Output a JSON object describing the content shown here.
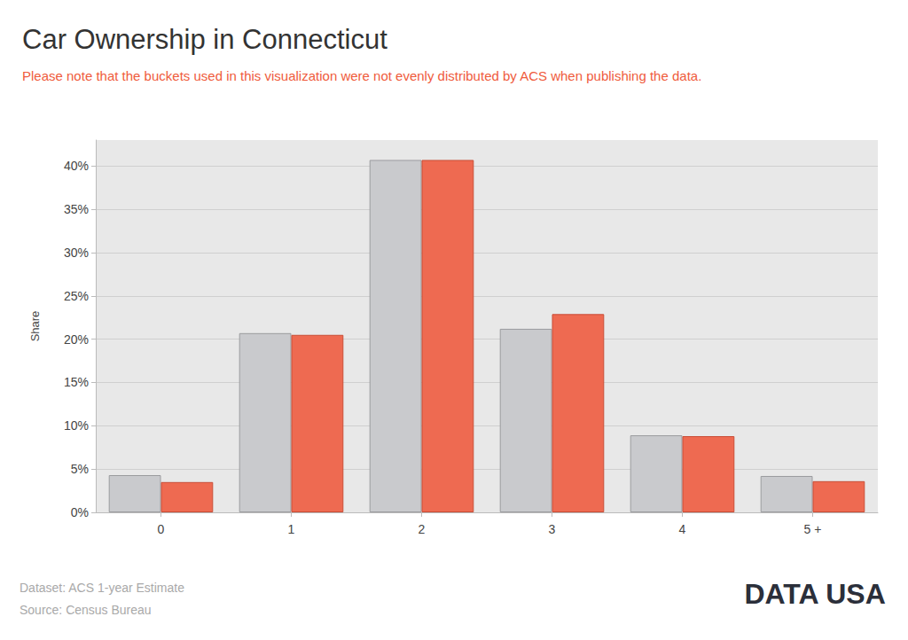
{
  "chart_data": {
    "type": "bar",
    "title": "Car Ownership in Connecticut",
    "subtitle": "Please note that the buckets used in this visualization were not evenly distributed by ACS when publishing the data.",
    "ylabel": "Share",
    "categories": [
      "0",
      "1",
      "2",
      "3",
      "4",
      "5 +"
    ],
    "series": [
      {
        "color": "#c9cacd",
        "values": [
          4.3,
          20.7,
          40.7,
          21.2,
          8.9,
          4.2
        ]
      },
      {
        "color": "#ee6a51",
        "values": [
          3.5,
          20.5,
          40.7,
          22.9,
          8.8,
          3.6
        ]
      }
    ],
    "ylim": [
      0,
      43
    ],
    "yticks": [
      {
        "value": 0,
        "label": "0%"
      },
      {
        "value": 5,
        "label": "5%"
      },
      {
        "value": 10,
        "label": "10%"
      },
      {
        "value": 15,
        "label": "15%"
      },
      {
        "value": 20,
        "label": "20%"
      },
      {
        "value": 25,
        "label": "25%"
      },
      {
        "value": 30,
        "label": "30%"
      },
      {
        "value": 35,
        "label": "35%"
      },
      {
        "value": 40,
        "label": "40%"
      }
    ],
    "grid": true,
    "notes": [
      "Dataset: ACS 1-year Estimate",
      "Source: Census Bureau"
    ],
    "logo": "DATA USA"
  }
}
